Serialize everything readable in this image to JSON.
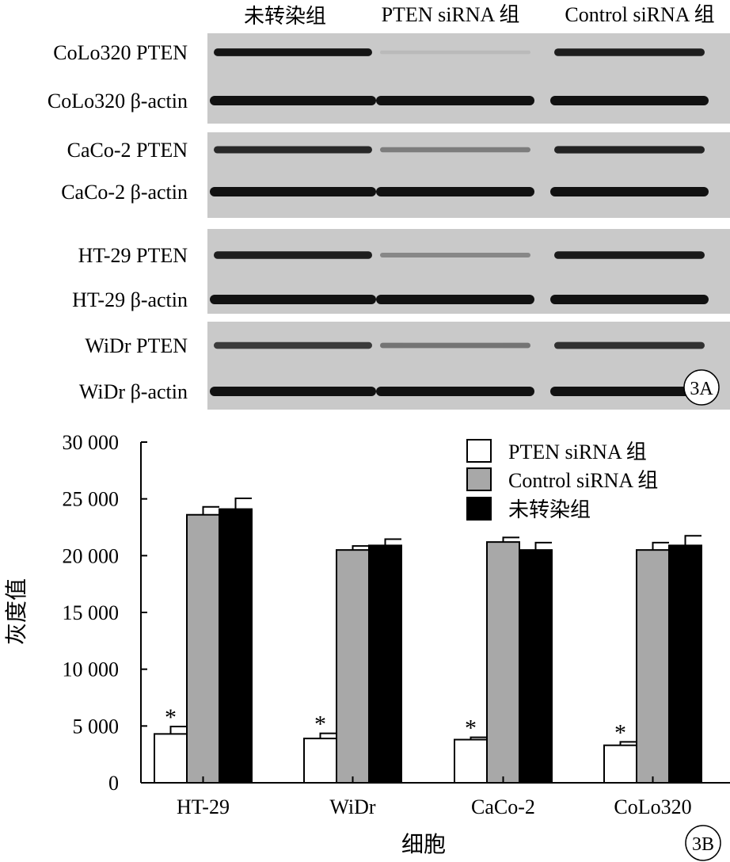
{
  "panel_a": {
    "lane_headers": [
      "未转染组",
      "PTEN siRNA 组",
      "Control siRNA 组"
    ],
    "blots": [
      {
        "name": "CoLo320",
        "rows": [
          "CoLo320 PTEN",
          "CoLo320 β-actin"
        ],
        "pten_intensity": [
          0.95,
          0.08,
          0.9
        ]
      },
      {
        "name": "CaCo-2",
        "rows": [
          "CaCo-2 PTEN",
          "CaCo-2 β-actin"
        ],
        "pten_intensity": [
          0.85,
          0.4,
          0.88
        ]
      },
      {
        "name": "HT-29",
        "rows": [
          "HT-29 PTEN",
          "HT-29 β-actin"
        ],
        "pten_intensity": [
          0.9,
          0.35,
          0.92
        ]
      },
      {
        "name": "WiDr",
        "rows": [
          "WiDr PTEN",
          "WiDr β-actin"
        ],
        "pten_intensity": [
          0.75,
          0.45,
          0.8
        ]
      }
    ],
    "badge": "3A"
  },
  "chart_data": {
    "type": "bar",
    "categories": [
      "HT-29",
      "WiDr",
      "CaCo-2",
      "CoLo320"
    ],
    "series": [
      {
        "name": "PTEN siRNA 组",
        "color": "#ffffff",
        "values": [
          4300,
          3900,
          3800,
          3300
        ],
        "errors": [
          650,
          450,
          200,
          300
        ],
        "annotation": [
          "*",
          "*",
          "*",
          "*"
        ]
      },
      {
        "name": "Control siRNA 组",
        "color": "#a8a8a8",
        "values": [
          23600,
          20500,
          21200,
          20500
        ],
        "errors": [
          700,
          350,
          400,
          650
        ]
      },
      {
        "name": "未转染组",
        "color": "#000000",
        "values": [
          24100,
          20900,
          20500,
          20900
        ],
        "errors": [
          950,
          550,
          650,
          850
        ]
      }
    ],
    "xlabel": "细胞",
    "ylabel": "灰度值",
    "ylim": [
      0,
      30000
    ],
    "yticks": [
      0,
      5000,
      10000,
      15000,
      20000,
      25000,
      30000
    ],
    "ytick_labels": [
      "0",
      "5 000",
      "10 000",
      "15 000",
      "20 000",
      "25 000",
      "30 000"
    ],
    "legend_position": "top-right",
    "grid": false,
    "badge": "3B"
  }
}
